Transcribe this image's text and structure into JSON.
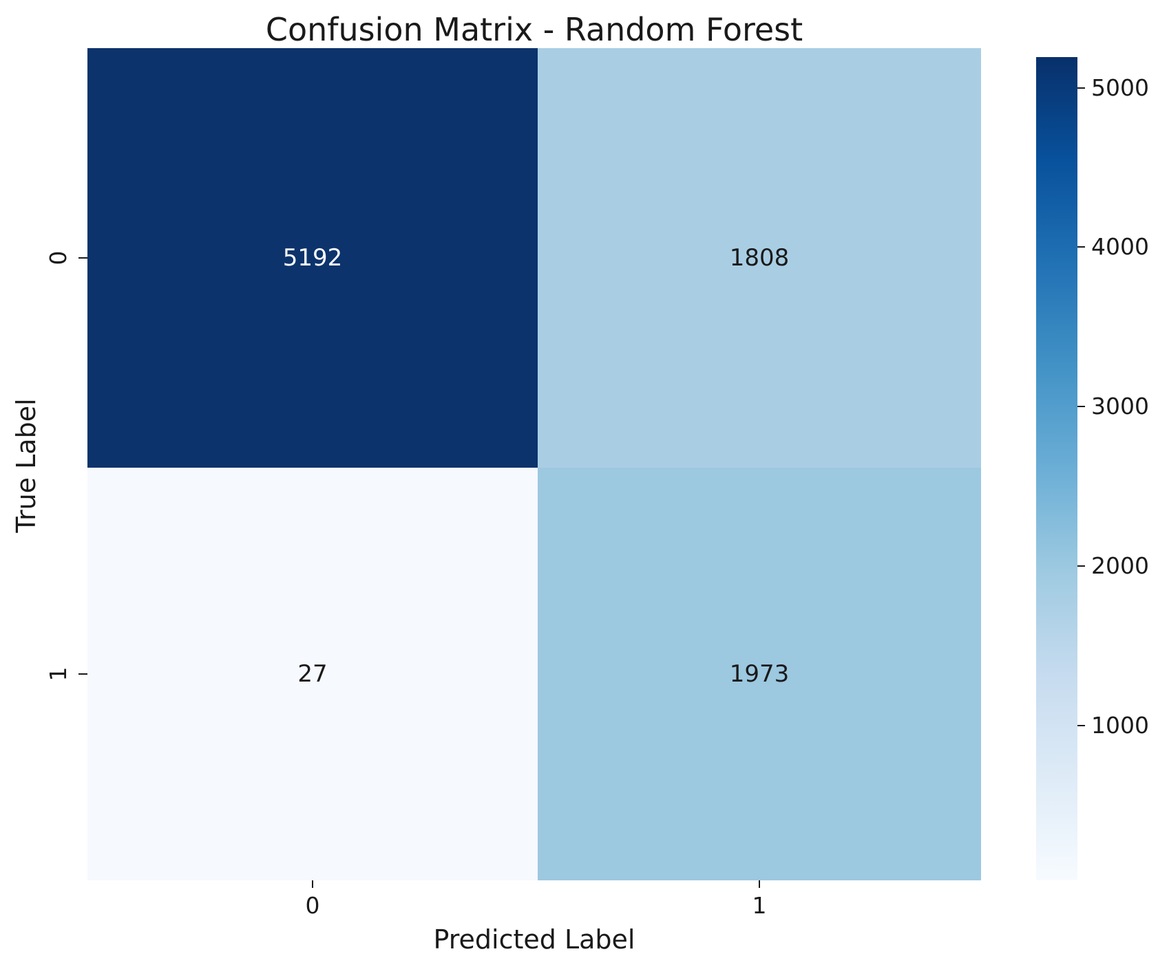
{
  "chart_data": {
    "type": "heatmap",
    "title": "Confusion Matrix - Random Forest",
    "xlabel": "Predicted Label",
    "ylabel": "True Label",
    "x_tick_labels": [
      "0",
      "1"
    ],
    "y_tick_labels": [
      "0",
      "1"
    ],
    "matrix": [
      [
        5192,
        1808
      ],
      [
        27,
        1973
      ]
    ],
    "vmin": 27,
    "vmax": 5192,
    "colormap": "Blues",
    "grid": false,
    "cell_colors": [
      [
        "#0c336c",
        "#a9cee4"
      ],
      [
        "#f6f9fd",
        "#9cc8e0"
      ]
    ],
    "cell_text_colors": [
      [
        "#ffffff",
        "#1a1a1a"
      ],
      [
        "#1a1a1a",
        "#1a1a1a"
      ]
    ],
    "colorbar": {
      "position": "right",
      "tick_labels": [
        "5000",
        "4000",
        "3000",
        "2000",
        "1000"
      ],
      "gradient_stops": [
        {
          "pos": "0%",
          "color": "#08306b"
        },
        {
          "pos": "12.5%",
          "color": "#08519c"
        },
        {
          "pos": "25%",
          "color": "#2171b5"
        },
        {
          "pos": "37.5%",
          "color": "#4292c6"
        },
        {
          "pos": "50%",
          "color": "#6baed6"
        },
        {
          "pos": "62.5%",
          "color": "#9ecae1"
        },
        {
          "pos": "75%",
          "color": "#c6dbef"
        },
        {
          "pos": "87.5%",
          "color": "#deebf7"
        },
        {
          "pos": "100%",
          "color": "#f7fbff"
        }
      ]
    }
  }
}
